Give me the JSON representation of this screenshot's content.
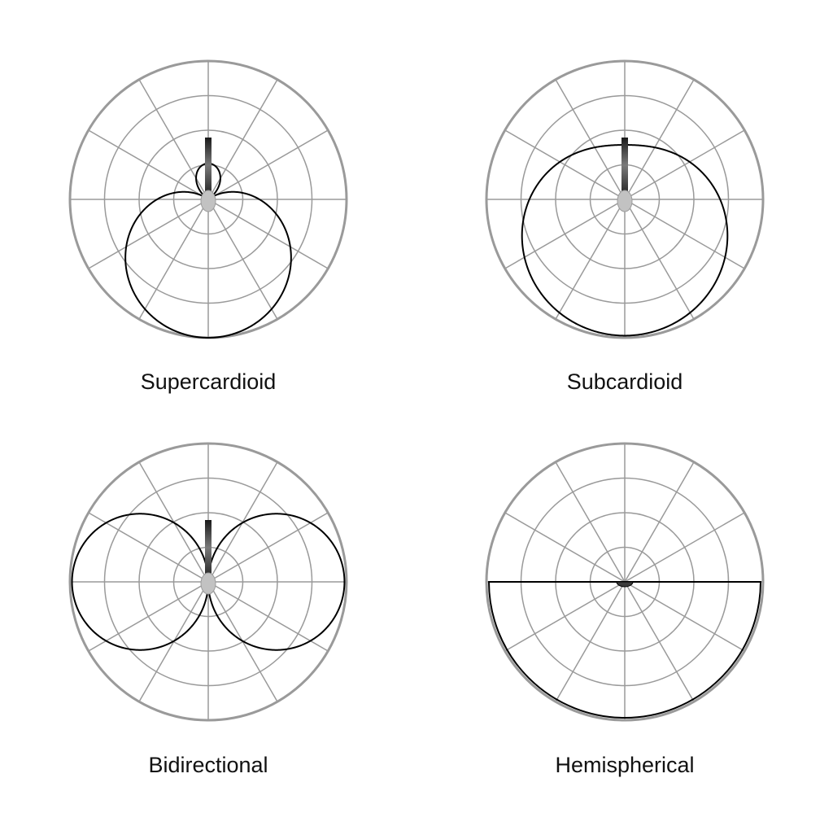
{
  "colors": {
    "grid": "#9a9a9a",
    "pattern": "#000000",
    "capsule": "#c2c2c2",
    "stem": "#3c3c3c"
  },
  "grid": {
    "rings": 4,
    "spokes": 12
  },
  "patterns": [
    {
      "label": "Supercardioid",
      "type": "supercardioid",
      "mic_icon": "side-address-mic-icon"
    },
    {
      "label": "Subcardioid",
      "type": "subcardioid",
      "mic_icon": "side-address-mic-icon"
    },
    {
      "label": "Bidirectional",
      "type": "bidirectional",
      "mic_icon": "side-address-mic-icon"
    },
    {
      "label": "Hemispherical",
      "type": "hemispherical",
      "mic_icon": "boundary-mic-icon"
    }
  ]
}
